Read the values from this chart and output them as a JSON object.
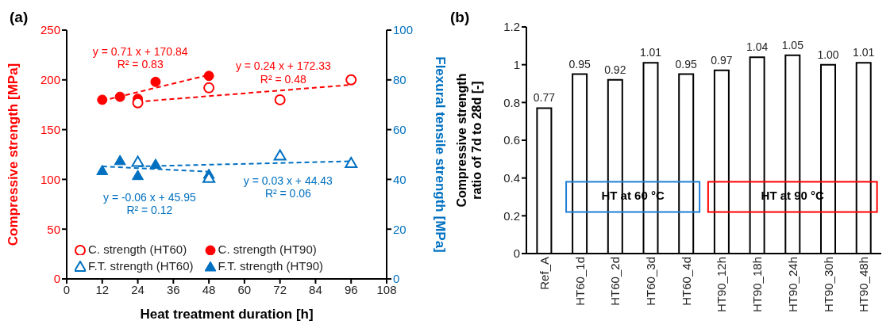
{
  "chart_data": [
    {
      "type": "scatter",
      "title": "(a)",
      "xlabel": "Heat treatment duration [h]",
      "ylabel": "Compressive strength [MPa]",
      "y2label": "Flexural tensile strength [MPa]",
      "xlim": [
        0,
        108
      ],
      "xticks": [
        0,
        12,
        24,
        36,
        48,
        60,
        72,
        84,
        96,
        108
      ],
      "ylim": [
        0,
        250
      ],
      "yticks": [
        0,
        50,
        100,
        150,
        200,
        250
      ],
      "y2lim": [
        0,
        100
      ],
      "y2ticks": [
        0,
        20,
        40,
        60,
        80,
        100
      ],
      "legend": "bottom left",
      "series": [
        {
          "name": "C. strength (HT60)",
          "color": "#ff0000",
          "marker": "circle",
          "x": [
            24,
            48,
            72,
            96
          ],
          "values": [
            177,
            192,
            180,
            200
          ]
        },
        {
          "name": "C. strength (HT90)",
          "color": "#ff0000",
          "marker": "circle",
          "x": [
            12,
            18,
            24,
            30,
            48
          ],
          "values": [
            180,
            183,
            181,
            198,
            204
          ]
        },
        {
          "name": "F.T. strength (HT60)",
          "color": "#0070c0",
          "marker": "triangle",
          "axis": "y2",
          "x": [
            24,
            48,
            72,
            96
          ],
          "values": [
            47,
            40.5,
            49.5,
            46.5
          ]
        },
        {
          "name": "F.T. strength (HT90)",
          "color": "#0070c0",
          "marker": "triangle",
          "axis": "y2",
          "x": [
            12,
            18,
            24,
            30,
            48
          ],
          "values": [
            43.5,
            47.5,
            41.5,
            46,
            42
          ]
        },
        {
          "type": "line",
          "color": "#ff0000",
          "line_style": "dashed",
          "marker": "none",
          "x": [
            24,
            96
          ],
          "values": [
            178,
            195
          ]
        },
        {
          "type": "line",
          "color": "#ff0000",
          "line_style": "dashed",
          "marker": "none",
          "x": [
            12,
            48
          ],
          "values": [
            179,
            205
          ]
        },
        {
          "type": "line",
          "color": "#0070c0",
          "line_style": "dashed",
          "marker": "none",
          "axis": "y2",
          "x": [
            24,
            96
          ],
          "values": [
            45.2,
            47.3
          ]
        },
        {
          "type": "line",
          "color": "#0070c0",
          "line_style": "dashed",
          "marker": "none",
          "axis": "y2",
          "x": [
            12,
            48
          ],
          "values": [
            45.2,
            43.1
          ]
        }
      ],
      "annotations": [
        "y = 0.71 x + 170.84",
        "R² = 0.83",
        "y = 0.24 x + 172.33",
        "R² = 0.48",
        "y = -0.06 x + 45.95",
        "R² = 0.12",
        "y = 0.03 x + 44.43",
        "R² = 0.06"
      ]
    },
    {
      "type": "bar",
      "title": "(b)",
      "ylabel": "Compressive strength ratio of 7d to 28d [-]",
      "categories": [
        "Ref_A",
        "HT60_1d",
        "HT60_2d",
        "HT60_3d",
        "HT60_4d",
        "HT90_12h",
        "HT90_18h",
        "HT90_24h",
        "HT90_30h",
        "HT90_48h"
      ],
      "values": [
        0.77,
        0.95,
        0.92,
        1.01,
        0.95,
        0.97,
        1.04,
        1.05,
        1.0,
        1.01
      ],
      "value_labels": [
        "0.77",
        "0.95",
        "0.92",
        "1.01",
        "0.95",
        "0.97",
        "1.04",
        "1.05",
        "1.00",
        "1.01"
      ],
      "colors": [
        "#ffffff",
        "#ffffff",
        "#ffffff",
        "#ffffff",
        "#ffffff",
        "#ffffff",
        "#ffffff",
        "#ffffff",
        "#ffffff",
        "#ffffff"
      ],
      "ylim": [
        0,
        1.2
      ],
      "yticks": [
        0,
        0.2,
        0.4,
        0.6,
        0.8,
        1,
        1.2
      ],
      "annotations": [
        "HT at 60 °C",
        "HT at 90 °C"
      ]
    }
  ]
}
